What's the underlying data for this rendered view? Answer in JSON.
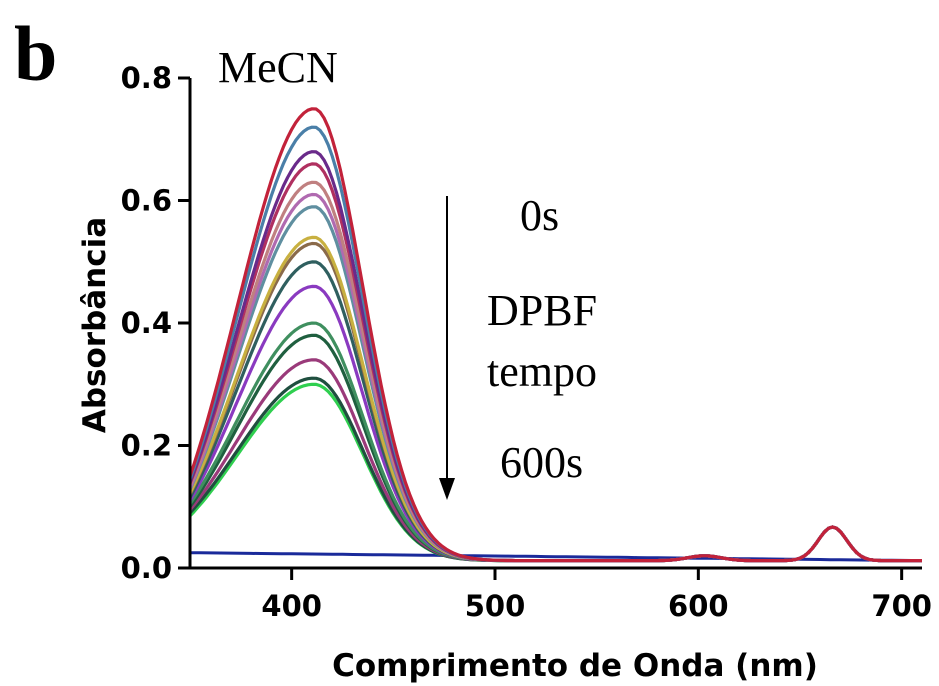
{
  "panel_label": "b",
  "chart_data": {
    "type": "line",
    "title": "",
    "solvent_label": "MeCN",
    "xlabel": "Comprimento de Onda (nm)",
    "ylabel": "Absorbância",
    "xlim": [
      350,
      710
    ],
    "ylim": [
      0.0,
      0.8
    ],
    "x_ticks": [
      400,
      500,
      600,
      700
    ],
    "y_ticks": [
      0.0,
      0.2,
      0.4,
      0.6,
      0.8
    ],
    "x_tick_labels": [
      "400",
      "500",
      "600",
      "700"
    ],
    "y_tick_labels": [
      "0.0",
      "0.2",
      "0.4",
      "0.6",
      "0.8"
    ],
    "grid": false,
    "annotations": {
      "arrow_direction": "down",
      "start_time": "0s",
      "compound": "DPBF",
      "time_word": "tempo",
      "end_time": "600s"
    },
    "peak_wavelength": 411,
    "series": [
      {
        "peak": 0.75,
        "left": 0.15,
        "color": "#c2223a"
      },
      {
        "peak": 0.72,
        "left": 0.145,
        "color": "#4a7fa8"
      },
      {
        "peak": 0.68,
        "left": 0.14,
        "color": "#6a2a8a"
      },
      {
        "peak": 0.66,
        "left": 0.138,
        "color": "#b03060"
      },
      {
        "peak": 0.63,
        "left": 0.135,
        "color": "#c08080"
      },
      {
        "peak": 0.61,
        "left": 0.13,
        "color": "#b06ab0"
      },
      {
        "peak": 0.59,
        "left": 0.128,
        "color": "#5f8fa0"
      },
      {
        "peak": 0.54,
        "left": 0.122,
        "color": "#c8b040"
      },
      {
        "peak": 0.53,
        "left": 0.12,
        "color": "#8a6a4a"
      },
      {
        "peak": 0.5,
        "left": 0.115,
        "color": "#2f5f5f"
      },
      {
        "peak": 0.46,
        "left": 0.11,
        "color": "#8a3ac0"
      },
      {
        "peak": 0.4,
        "left": 0.105,
        "color": "#3f8f5f"
      },
      {
        "peak": 0.38,
        "left": 0.1,
        "color": "#1f5f3f"
      },
      {
        "peak": 0.34,
        "left": 0.095,
        "color": "#9a3a7a"
      },
      {
        "peak": 0.31,
        "left": 0.09,
        "color": "#1f4f3f"
      },
      {
        "peak": 0.3,
        "left": 0.085,
        "color": "#2fcf4f"
      }
    ],
    "baseline_series": {
      "color": "#1a2a9a",
      "start": 0.025,
      "end": 0.012
    },
    "q_band": {
      "center": 666,
      "height": 0.055,
      "color": "#5a2a9a"
    }
  }
}
